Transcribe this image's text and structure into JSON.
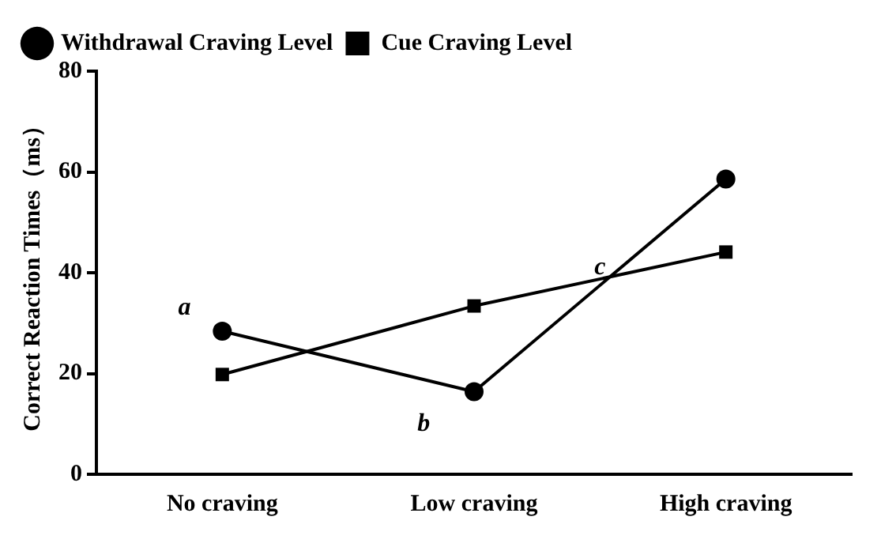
{
  "chart_data": {
    "type": "line",
    "ylabel": "Correct Reaction Times（ms）",
    "categories": [
      "No craving",
      "Low craving",
      "High craving"
    ],
    "series": [
      {
        "name": "Withdrawal Craving Level",
        "color": "#000000",
        "values": [
          28.4,
          16.4,
          58.6
        ],
        "marker": "circle"
      },
      {
        "name": "Cue Craving Level",
        "color": "#000000",
        "values": [
          19.8,
          33.4,
          44.1
        ],
        "marker": "square"
      }
    ],
    "annotations": [
      "a",
      "b",
      "c"
    ],
    "ylim": [
      0,
      80
    ],
    "yticks": [
      0,
      20,
      40,
      60,
      80
    ],
    "grid": false,
    "legend": "top left",
    "line_style": "solid"
  }
}
